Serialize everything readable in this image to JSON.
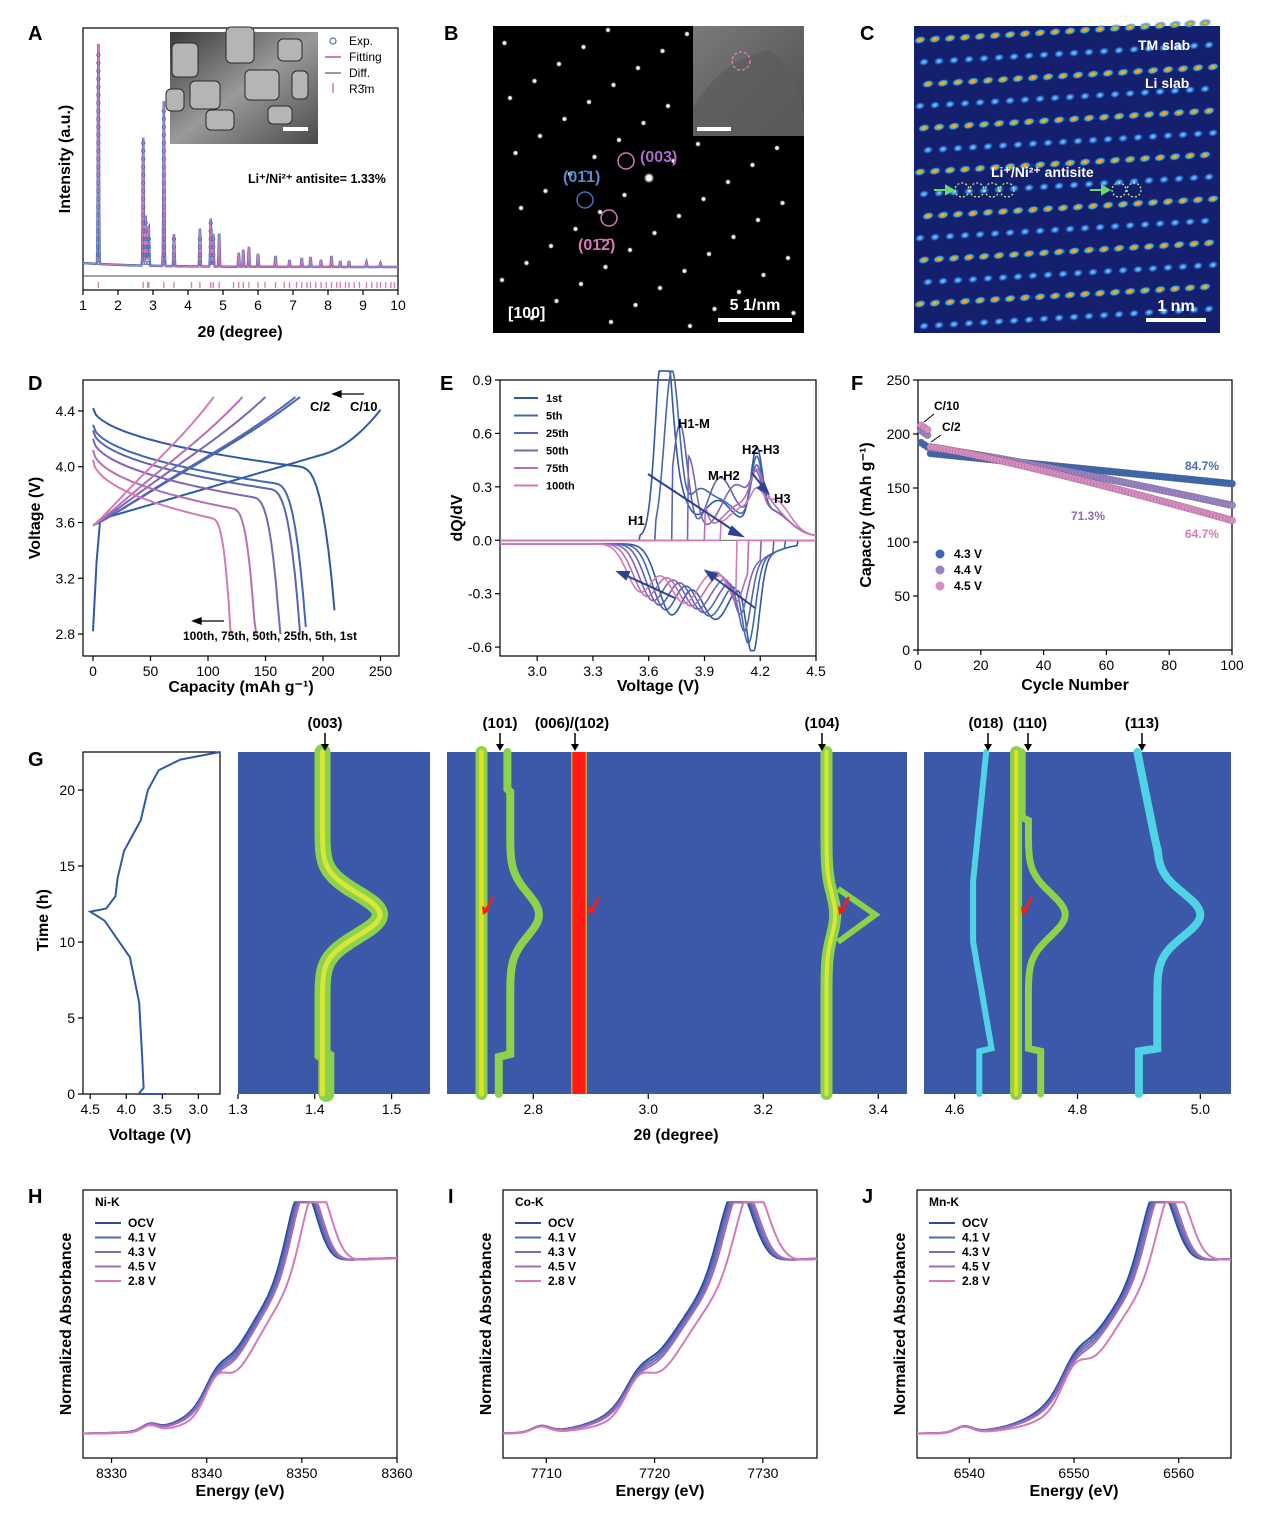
{
  "colors": {
    "blue": "#4a6fb5",
    "darkblue": "#2b4391",
    "purple": "#8d6bb5",
    "pink": "#d47ab7",
    "map_bg": "#3b59a8",
    "map_green": "#8cd24a",
    "map_cyan": "#4fd4e6",
    "map_red": "#ff1a12"
  },
  "panels": {
    "A": {
      "letter": "A",
      "ylabel": "Intensity (a.u.)",
      "xlabel": "2θ (degree)",
      "xticks": [
        "1",
        "2",
        "3",
        "4",
        "5",
        "6",
        "7",
        "8",
        "9",
        "10"
      ],
      "legend": [
        "Exp.",
        "Fitting",
        "Diff.",
        "R3̄m"
      ],
      "annotation": "Li⁺/Ni²⁺ antisite= 1.33%"
    },
    "B": {
      "letter": "B",
      "labels": [
        "(01̄1)",
        "(003)",
        "(01̄2̄)"
      ],
      "zone": "[100]",
      "scale": "5 1/nm"
    },
    "C": {
      "letter": "C",
      "labels": [
        "TM slab",
        "Li slab",
        "Li⁺/Ni²⁺ antisite"
      ],
      "scale": "1 nm"
    },
    "D": {
      "letter": "D",
      "ylabel": "Voltage (V)",
      "xlabel": "Capacity (mAh g⁻¹)",
      "xticks": [
        "0",
        "50",
        "100",
        "150",
        "200",
        "250"
      ],
      "yticks": [
        "2.8",
        "3.2",
        "3.6",
        "4.0",
        "4.4"
      ],
      "rate1": "C/2",
      "rate2": "C/10",
      "cycles_note": "100th, 75th, 50th, 25th, 5th, 1st"
    },
    "E": {
      "letter": "E",
      "ylabel": "dQ/dV",
      "xlabel": "Voltage (V)",
      "xticks": [
        "3.0",
        "3.3",
        "3.6",
        "3.9",
        "4.2",
        "4.5"
      ],
      "yticks": [
        "-0.6",
        "-0.3",
        "0.0",
        "0.3",
        "0.6",
        "0.9"
      ],
      "legend": [
        "1st",
        "5th",
        "25th",
        "50th",
        "75th",
        "100th"
      ],
      "phases": [
        "H1",
        "H1-M",
        "M-H2",
        "H2-H3",
        "H3"
      ]
    },
    "F": {
      "letter": "F",
      "ylabel": "Capacity (mAh g⁻¹)",
      "xlabel": "Cycle Number",
      "xticks": [
        "0",
        "20",
        "40",
        "60",
        "80",
        "100"
      ],
      "yticks": [
        "0",
        "50",
        "100",
        "150",
        "200",
        "250"
      ],
      "legend": [
        "4.3 V",
        "4.4 V",
        "4.5 V"
      ],
      "rates": [
        "C/10",
        "C/2"
      ],
      "retention": [
        "84.7%",
        "71.3%",
        "64.7%"
      ]
    },
    "G": {
      "letter": "G",
      "ylabel": "Time (h)",
      "v_xlabel": "Voltage (V)",
      "v_xticks": [
        "4.5",
        "4.0",
        "3.5",
        "3.0"
      ],
      "yticks": [
        "0",
        "5",
        "10",
        "15",
        "20"
      ],
      "xlabel": "2θ (degree)",
      "m1_xticks": [
        "1.3",
        "1.4",
        "1.5"
      ],
      "m2_xticks": [
        "2.8",
        "3.0",
        "3.2",
        "3.4"
      ],
      "m3_xticks": [
        "4.6",
        "4.8",
        "5.0"
      ],
      "peaks": [
        "(003)",
        "(101)",
        "(006)/(102)",
        "(104)",
        "(018)",
        "(110)",
        "(113)"
      ]
    },
    "H": {
      "letter": "H",
      "element": "Ni-K",
      "ylabel": "Normalized Absorbance",
      "xlabel": "Energy (eV)",
      "xticks": [
        "8330",
        "8340",
        "8350",
        "8360"
      ]
    },
    "I": {
      "letter": "I",
      "element": "Co-K",
      "ylabel": "Normalized Absorbance",
      "xlabel": "Energy (eV)",
      "xticks": [
        "7710",
        "7720",
        "7730"
      ]
    },
    "J": {
      "letter": "J",
      "element": "Mn-K",
      "ylabel": "Normalized Absorbance",
      "xlabel": "Energy (eV)",
      "xticks": [
        "6540",
        "6550",
        "6560"
      ]
    },
    "xas_legend": [
      "OCV",
      "4.1 V",
      "4.3 V",
      "4.5 V",
      "2.8 V"
    ]
  },
  "chart_data": [
    {
      "type": "line",
      "panel": "A",
      "xlabel": "2θ (degree)",
      "ylabel": "Intensity (a.u.)",
      "xlim": [
        1,
        10
      ],
      "peaks_2theta": [
        1.44,
        2.72,
        2.85,
        2.88,
        3.31,
        3.6,
        4.34,
        4.65,
        4.72,
        4.89,
        5.45,
        5.6,
        5.74,
        6.0,
        6.5,
        7.25,
        7.5,
        8.1
      ],
      "series": [
        {
          "name": "Exp."
        },
        {
          "name": "Fitting"
        },
        {
          "name": "Diff."
        },
        {
          "name": "R3̄m"
        }
      ]
    },
    {
      "type": "line",
      "panel": "D",
      "xlabel": "Capacity (mAh g⁻¹)",
      "ylabel": "Voltage (V)",
      "xlim": [
        0,
        260
      ],
      "ylim": [
        2.7,
        4.5
      ],
      "discharge_capacity_end": {
        "1st": 210,
        "5th": 185,
        "25th": 180,
        "50th": 163,
        "75th": 142,
        "100th": 121
      }
    },
    {
      "type": "line",
      "panel": "E",
      "xlabel": "Voltage (V)",
      "ylabel": "dQ/dV",
      "xlim": [
        2.8,
        4.5
      ],
      "ylim": [
        -0.65,
        0.9
      ],
      "series_names": [
        "1st",
        "5th",
        "25th",
        "50th",
        "75th",
        "100th"
      ]
    },
    {
      "type": "scatter",
      "panel": "F",
      "xlabel": "Cycle Number",
      "ylabel": "Capacity (mAh g⁻¹)",
      "xlim": [
        0,
        100
      ],
      "ylim": [
        0,
        250
      ],
      "series": [
        {
          "name": "4.3 V",
          "start": 192,
          "after_c2": 182,
          "end": 154,
          "retention": "84.7%"
        },
        {
          "name": "4.4 V",
          "start": 203,
          "after_c2": 187,
          "end": 134,
          "retention": "71.3%"
        },
        {
          "name": "4.5 V",
          "start": 208,
          "after_c2": 188,
          "end": 120,
          "retention": "64.7%"
        }
      ]
    },
    {
      "type": "heatmap",
      "panel": "G",
      "xlabel": "2θ (degree)",
      "ylabel": "Time (h)",
      "ylim": [
        0,
        22.5
      ]
    },
    {
      "type": "line",
      "panel": "H",
      "xlabel": "Energy (eV)",
      "ylabel": "Normalized Absorbance",
      "xlim": [
        8327,
        8360
      ],
      "series_names": [
        "OCV",
        "4.1 V",
        "4.3 V",
        "4.5 V",
        "2.8 V"
      ]
    },
    {
      "type": "line",
      "panel": "I",
      "xlabel": "Energy (eV)",
      "ylabel": "Normalized Absorbance",
      "xlim": [
        7706,
        7735
      ],
      "series_names": [
        "OCV",
        "4.1 V",
        "4.3 V",
        "4.5 V",
        "2.8 V"
      ]
    },
    {
      "type": "line",
      "panel": "J",
      "xlabel": "Energy (eV)",
      "ylabel": "Normalized Absorbance",
      "xlim": [
        6535,
        6565
      ],
      "series_names": [
        "OCV",
        "4.1 V",
        "4.3 V",
        "4.5 V",
        "2.8 V"
      ]
    }
  ]
}
